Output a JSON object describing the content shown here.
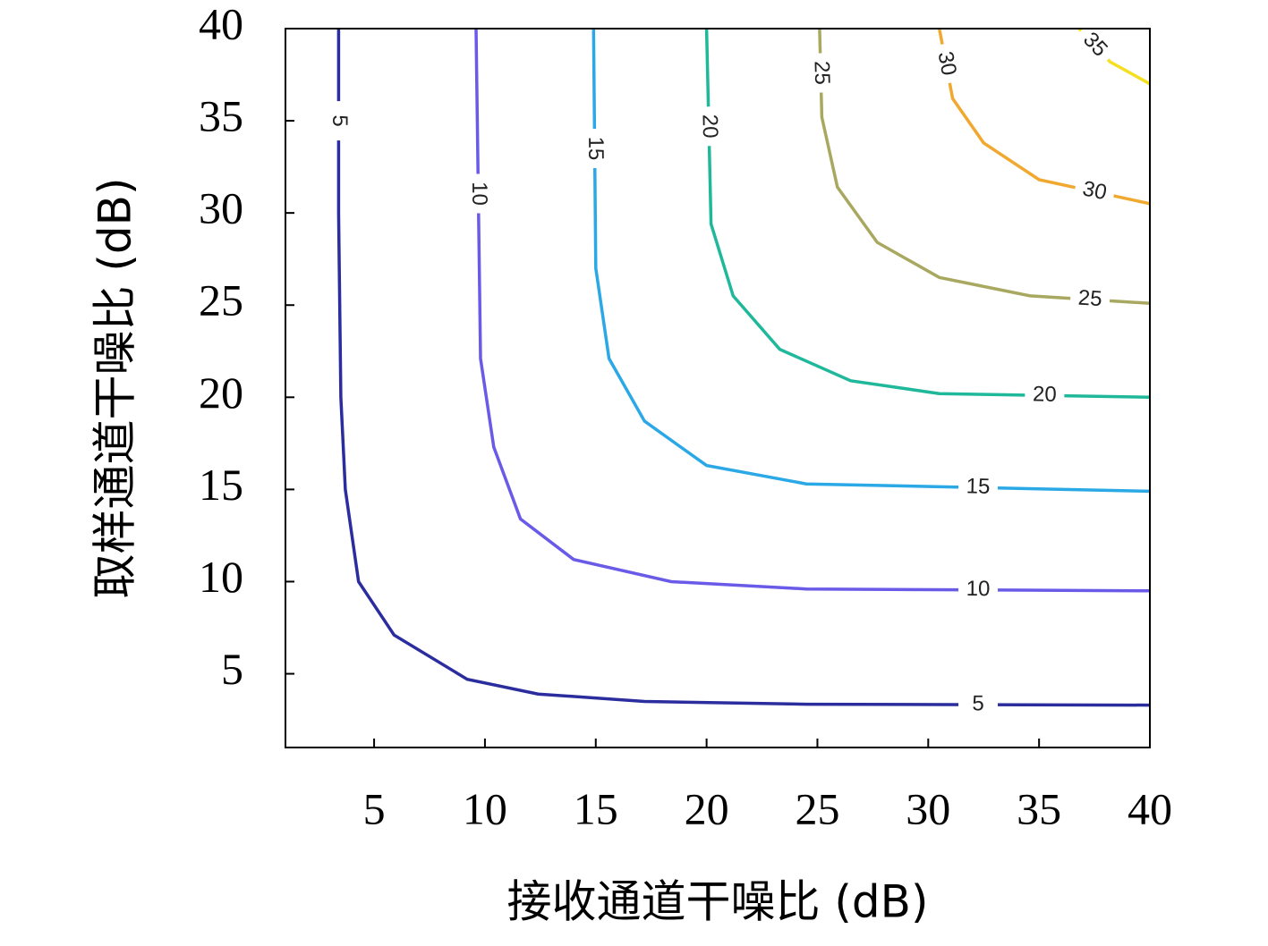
{
  "chart_data": {
    "type": "contour",
    "x_label": "接收通道干噪比 (dB)",
    "y_label": "取样通道干噪比 (dB)",
    "xlim": [
      1,
      40
    ],
    "ylim": [
      1,
      40
    ],
    "xticks": [
      5,
      10,
      15,
      20,
      25,
      30,
      35,
      40
    ],
    "yticks": [
      5,
      10,
      15,
      20,
      25,
      30,
      35,
      40
    ],
    "series": [
      {
        "name": "5",
        "color": "#2b2d9e",
        "x": [
          3.4,
          3.4,
          3.5,
          3.7,
          4.3,
          5.9,
          9.2,
          12.4,
          17.2,
          24.5,
          40
        ],
        "y": [
          40,
          30,
          20,
          15,
          10,
          7.1,
          4.7,
          3.9,
          3.5,
          3.35,
          3.3
        ]
      },
      {
        "name": "10",
        "color": "#6a5ae8",
        "x": [
          9.6,
          9.8,
          10.4,
          11.6,
          14.0,
          18.4,
          24.5,
          40
        ],
        "y": [
          40,
          22.1,
          17.3,
          13.4,
          11.2,
          10,
          9.6,
          9.5
        ]
      },
      {
        "name": "15",
        "color": "#2ba8e6",
        "x": [
          14.9,
          15,
          15.6,
          17.2,
          20,
          24.5,
          40
        ],
        "y": [
          40,
          27,
          22.1,
          18.7,
          16.3,
          15.3,
          14.9
        ]
      },
      {
        "name": "20",
        "color": "#1fb89a",
        "x": [
          20,
          20.2,
          21.2,
          23.3,
          26.5,
          30.5,
          40
        ],
        "y": [
          40,
          29.4,
          25.5,
          22.6,
          20.9,
          20.2,
          20
        ]
      },
      {
        "name": "25",
        "color": "#a8a860",
        "x": [
          25.1,
          25.2,
          25.9,
          27.7,
          30.5,
          34.6,
          40
        ],
        "y": [
          40,
          35.2,
          31.4,
          28.4,
          26.5,
          25.5,
          25.1
        ]
      },
      {
        "name": "30",
        "color": "#f0a830",
        "x": [
          30.5,
          31.1,
          32.5,
          35,
          40
        ],
        "y": [
          40,
          36.2,
          33.8,
          31.8,
          30.5
        ]
      },
      {
        "name": "35",
        "color": "#f4e020",
        "x": [
          36.8,
          38.2,
          40
        ],
        "y": [
          40,
          38.2,
          37
        ]
      }
    ]
  }
}
